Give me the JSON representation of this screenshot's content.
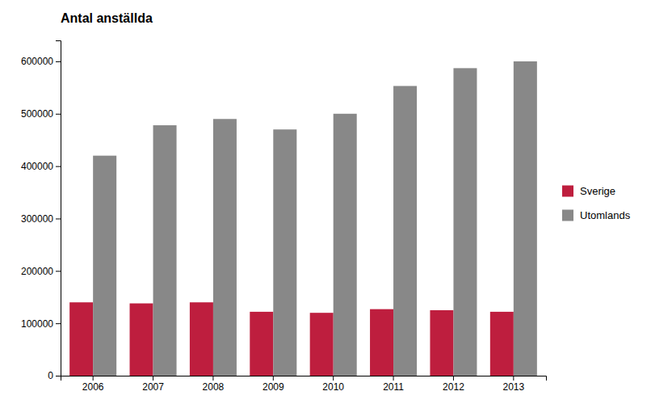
{
  "chart_data": {
    "type": "bar",
    "title": "Antal anställda",
    "categories": [
      "2006",
      "2007",
      "2008",
      "2009",
      "2010",
      "2011",
      "2012",
      "2013"
    ],
    "series": [
      {
        "name": "Sverige",
        "color": "#be1e3e",
        "values": [
          140000,
          138000,
          140000,
          122000,
          120000,
          127000,
          125000,
          122000
        ]
      },
      {
        "name": "Utomlands",
        "color": "#888888",
        "values": [
          420000,
          478000,
          490000,
          470000,
          500000,
          553000,
          587000,
          600000
        ]
      }
    ],
    "ylim": [
      0,
      640000
    ],
    "yticks": [
      0,
      100000,
      200000,
      300000,
      400000,
      500000,
      600000
    ],
    "grid": false,
    "legend": "right"
  }
}
